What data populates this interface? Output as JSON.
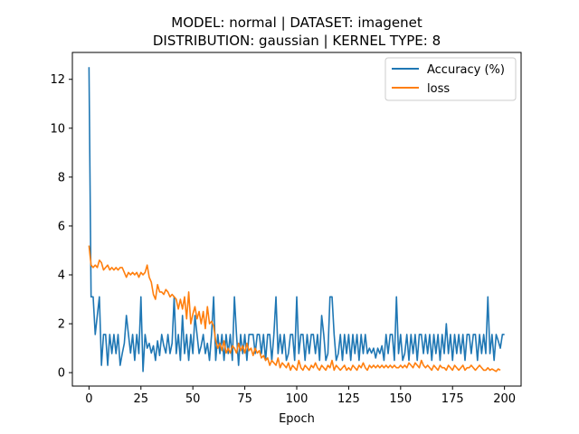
{
  "chart_data": {
    "type": "line",
    "title_line1": "MODEL: normal | DATASET: imagenet",
    "title_line2": "DISTRIBUTION: gaussian | KERNEL TYPE: 8",
    "xlabel": "Epoch",
    "ylabel": "",
    "xlim": [
      -8,
      208
    ],
    "ylim": [
      -0.55,
      13.1
    ],
    "xticks": [
      0,
      25,
      50,
      75,
      100,
      125,
      150,
      175,
      200
    ],
    "yticks": [
      0,
      2,
      4,
      6,
      8,
      10,
      12
    ],
    "legend_position": "top-right",
    "grid": false,
    "series": [
      {
        "name": "Accuracy (%)",
        "color": "#1f77b4",
        "values": [
          12.5,
          3.1,
          3.1,
          1.56,
          2.34,
          3.1,
          0.3,
          1.56,
          1.56,
          0.3,
          1.56,
          0.78,
          1.56,
          0.78,
          1.56,
          0.3,
          0.78,
          1.2,
          2.34,
          1.56,
          0.8,
          1.56,
          0.5,
          1.56,
          0.78,
          3.1,
          0.05,
          1.56,
          1.0,
          1.2,
          0.8,
          1.1,
          0.5,
          1.3,
          0.7,
          1.56,
          1.1,
          0.8,
          1.56,
          0.78,
          1.2,
          3.1,
          0.78,
          1.56,
          0.5,
          2.34,
          0.78,
          1.56,
          0.5,
          1.56,
          0.78,
          2.34,
          1.56,
          0.78,
          1.1,
          1.56,
          0.78,
          1.2,
          0.5,
          1.56,
          3.1,
          0.5,
          1.56,
          0.78,
          1.56,
          0.5,
          1.56,
          0.78,
          1.56,
          0.5,
          3.1,
          1.56,
          0.3,
          1.56,
          0.78,
          1.56,
          0.5,
          1.56,
          1.56,
          1.56,
          0.78,
          1.56,
          1.56,
          0.78,
          1.56,
          0.5,
          1.56,
          1.56,
          0.5,
          1.56,
          3.1,
          0.78,
          1.56,
          0.78,
          1.56,
          0.5,
          0.78,
          1.56,
          1.56,
          0.5,
          3.1,
          0.78,
          1.56,
          1.56,
          0.5,
          1.56,
          0.78,
          1.56,
          1.56,
          0.78,
          1.56,
          0.5,
          2.34,
          1.56,
          0.5,
          0.78,
          3.1,
          3.1,
          1.56,
          0.5,
          0.78,
          1.56,
          0.5,
          1.56,
          0.78,
          1.56,
          0.5,
          1.56,
          0.78,
          1.56,
          0.5,
          1.56,
          0.78,
          1.56,
          0.78,
          1.0,
          0.8,
          1.0,
          0.6,
          1.0,
          0.78,
          1.1,
          0.5,
          1.56,
          0.78,
          1.56,
          1.56,
          0.5,
          3.1,
          0.78,
          1.56,
          0.5,
          0.78,
          1.56,
          0.5,
          1.56,
          0.78,
          1.56,
          0.5,
          1.56,
          1.56,
          0.78,
          1.56,
          0.78,
          1.56,
          0.5,
          1.56,
          0.78,
          1.56,
          0.5,
          1.56,
          0.78,
          2.0,
          0.78,
          1.56,
          0.5,
          1.56,
          0.78,
          1.56,
          0.78,
          1.56,
          0.5,
          1.56,
          1.56,
          0.78,
          1.56,
          1.56,
          0.5,
          1.56,
          0.78,
          1.56,
          0.78,
          3.1,
          0.78,
          1.56,
          0.5,
          1.56,
          1.3,
          1.0,
          1.56,
          1.56
        ]
      },
      {
        "name": "loss",
        "color": "#ff7f0e",
        "values": [
          5.2,
          4.4,
          4.3,
          4.4,
          4.3,
          4.6,
          4.5,
          4.2,
          4.3,
          4.4,
          4.2,
          4.3,
          4.2,
          4.3,
          4.2,
          4.3,
          4.3,
          4.1,
          3.9,
          4.1,
          4.0,
          4.1,
          4.0,
          4.1,
          3.9,
          4.1,
          4.0,
          4.1,
          4.4,
          3.9,
          3.7,
          3.2,
          3.0,
          3.6,
          3.3,
          3.3,
          3.2,
          3.4,
          3.3,
          3.1,
          3.2,
          3.1,
          3.0,
          2.6,
          3.0,
          2.6,
          3.1,
          2.2,
          3.3,
          2.0,
          2.4,
          2.7,
          2.2,
          2.5,
          2.0,
          2.5,
          1.8,
          2.7,
          2.0,
          2.1,
          1.9,
          1.3,
          1.0,
          1.2,
          0.9,
          1.3,
          0.8,
          1.0,
          0.8,
          1.1,
          1.0,
          0.8,
          1.2,
          0.9,
          1.1,
          0.8,
          1.2,
          0.9,
          1.0,
          0.7,
          1.0,
          0.8,
          0.9,
          0.6,
          0.7,
          0.5,
          0.6,
          0.3,
          0.5,
          0.4,
          0.3,
          0.6,
          0.2,
          0.4,
          0.3,
          0.2,
          0.4,
          0.1,
          0.3,
          0.2,
          0.1,
          0.5,
          0.2,
          0.1,
          0.3,
          0.2,
          0.1,
          0.3,
          0.2,
          0.4,
          0.2,
          0.1,
          0.3,
          0.2,
          0.1,
          0.3,
          0.2,
          0.5,
          0.1,
          0.3,
          0.2,
          0.1,
          0.2,
          0.3,
          0.1,
          0.2,
          0.1,
          0.3,
          0.2,
          0.1,
          0.3,
          0.2,
          0.4,
          0.2,
          0.1,
          0.3,
          0.2,
          0.3,
          0.2,
          0.3,
          0.2,
          0.3,
          0.2,
          0.3,
          0.2,
          0.3,
          0.2,
          0.3,
          0.2,
          0.2,
          0.3,
          0.2,
          0.3,
          0.2,
          0.4,
          0.3,
          0.2,
          0.4,
          0.3,
          0.2,
          0.5,
          0.3,
          0.2,
          0.3,
          0.2,
          0.1,
          0.3,
          0.2,
          0.1,
          0.3,
          0.2,
          0.2,
          0.1,
          0.3,
          0.2,
          0.1,
          0.3,
          0.2,
          0.1,
          0.2,
          0.3,
          0.1,
          0.2,
          0.2,
          0.3,
          0.2,
          0.1,
          0.2,
          0.3,
          0.2,
          0.1,
          0.1,
          0.2,
          0.1,
          0.15,
          0.1,
          0.05,
          0.15,
          0.1
        ]
      }
    ]
  }
}
